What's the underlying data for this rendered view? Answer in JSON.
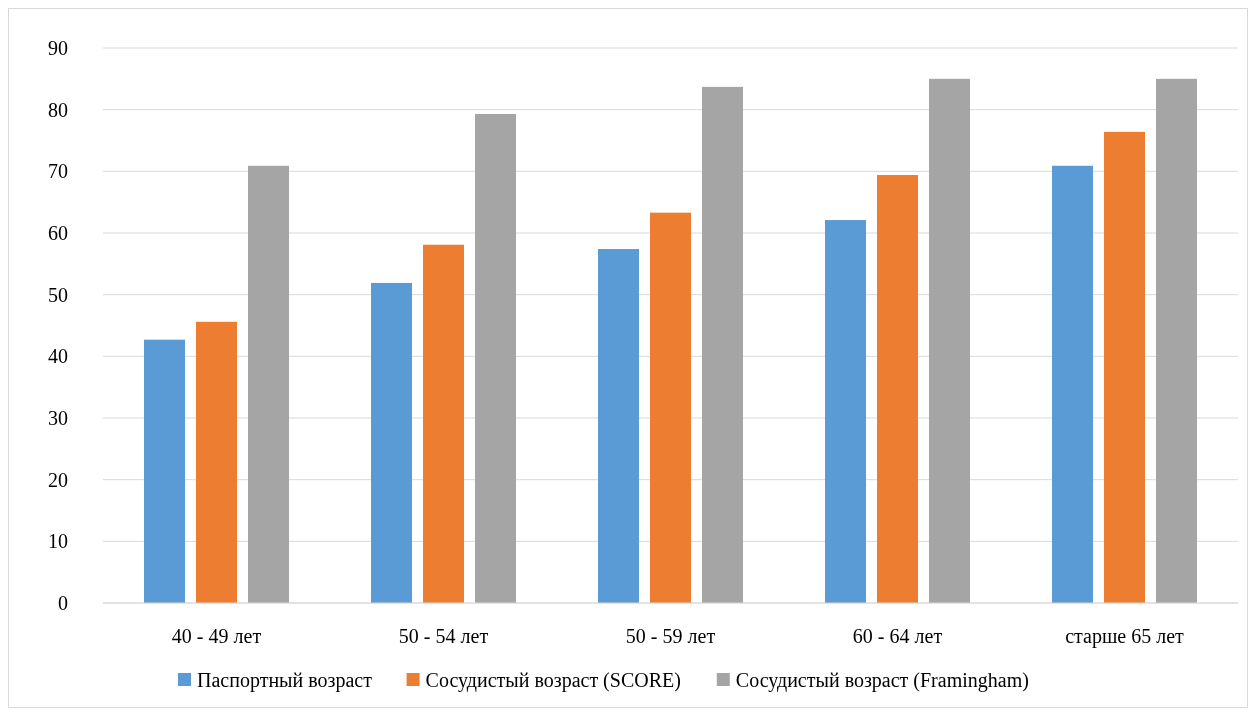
{
  "chart_data": {
    "type": "bar",
    "categories": [
      "40 - 49 лет",
      "50 - 54 лет",
      "50 - 59 лет",
      "60 - 64 лет",
      "старше 65 лет"
    ],
    "series": [
      {
        "name": "Паспортный возраст",
        "color": "#5b9bd5",
        "values": [
          42.7,
          51.9,
          57.4,
          62.1,
          70.9
        ]
      },
      {
        "name": "Сосудистый возраст (SCORE)",
        "color": "#ed7d31",
        "values": [
          45.6,
          58.1,
          63.3,
          69.4,
          76.4
        ]
      },
      {
        "name": "Сосудистый возраст (Framingham)",
        "color": "#a5a5a5",
        "values": [
          70.9,
          79.3,
          83.7,
          85.0,
          85.0
        ]
      }
    ],
    "ylim": [
      0,
      90
    ],
    "yticks": [
      0,
      10,
      20,
      30,
      40,
      50,
      60,
      70,
      80,
      90
    ],
    "grid": "y",
    "legend": "bottom"
  }
}
